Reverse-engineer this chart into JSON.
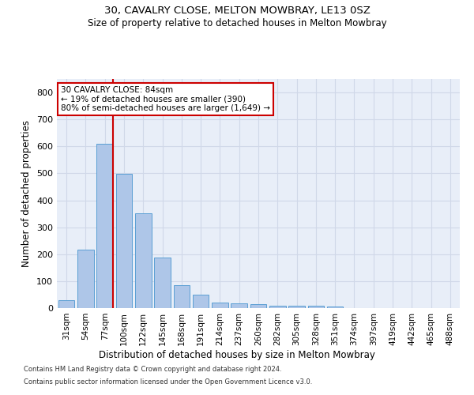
{
  "title_line1": "30, CAVALRY CLOSE, MELTON MOWBRAY, LE13 0SZ",
  "title_line2": "Size of property relative to detached houses in Melton Mowbray",
  "xlabel": "Distribution of detached houses by size in Melton Mowbray",
  "ylabel": "Number of detached properties",
  "categories": [
    "31sqm",
    "54sqm",
    "77sqm",
    "100sqm",
    "122sqm",
    "145sqm",
    "168sqm",
    "191sqm",
    "214sqm",
    "237sqm",
    "260sqm",
    "282sqm",
    "305sqm",
    "328sqm",
    "351sqm",
    "374sqm",
    "397sqm",
    "419sqm",
    "442sqm",
    "465sqm",
    "488sqm"
  ],
  "values": [
    30,
    218,
    610,
    497,
    352,
    188,
    85,
    51,
    20,
    18,
    15,
    8,
    10,
    10,
    7,
    0,
    0,
    0,
    0,
    0,
    0
  ],
  "bar_color": "#aec6e8",
  "bar_edge_color": "#5a9fd4",
  "vline_color": "#cc0000",
  "annotation_text": "30 CAVALRY CLOSE: 84sqm\n← 19% of detached houses are smaller (390)\n80% of semi-detached houses are larger (1,649) →",
  "annotation_box_color": "#ffffff",
  "annotation_box_edge": "#cc0000",
  "ylim": [
    0,
    850
  ],
  "yticks": [
    0,
    100,
    200,
    300,
    400,
    500,
    600,
    700,
    800
  ],
  "grid_color": "#d0d8e8",
  "background_color": "#e8eef8",
  "footer_line1": "Contains HM Land Registry data © Crown copyright and database right 2024.",
  "footer_line2": "Contains public sector information licensed under the Open Government Licence v3.0."
}
